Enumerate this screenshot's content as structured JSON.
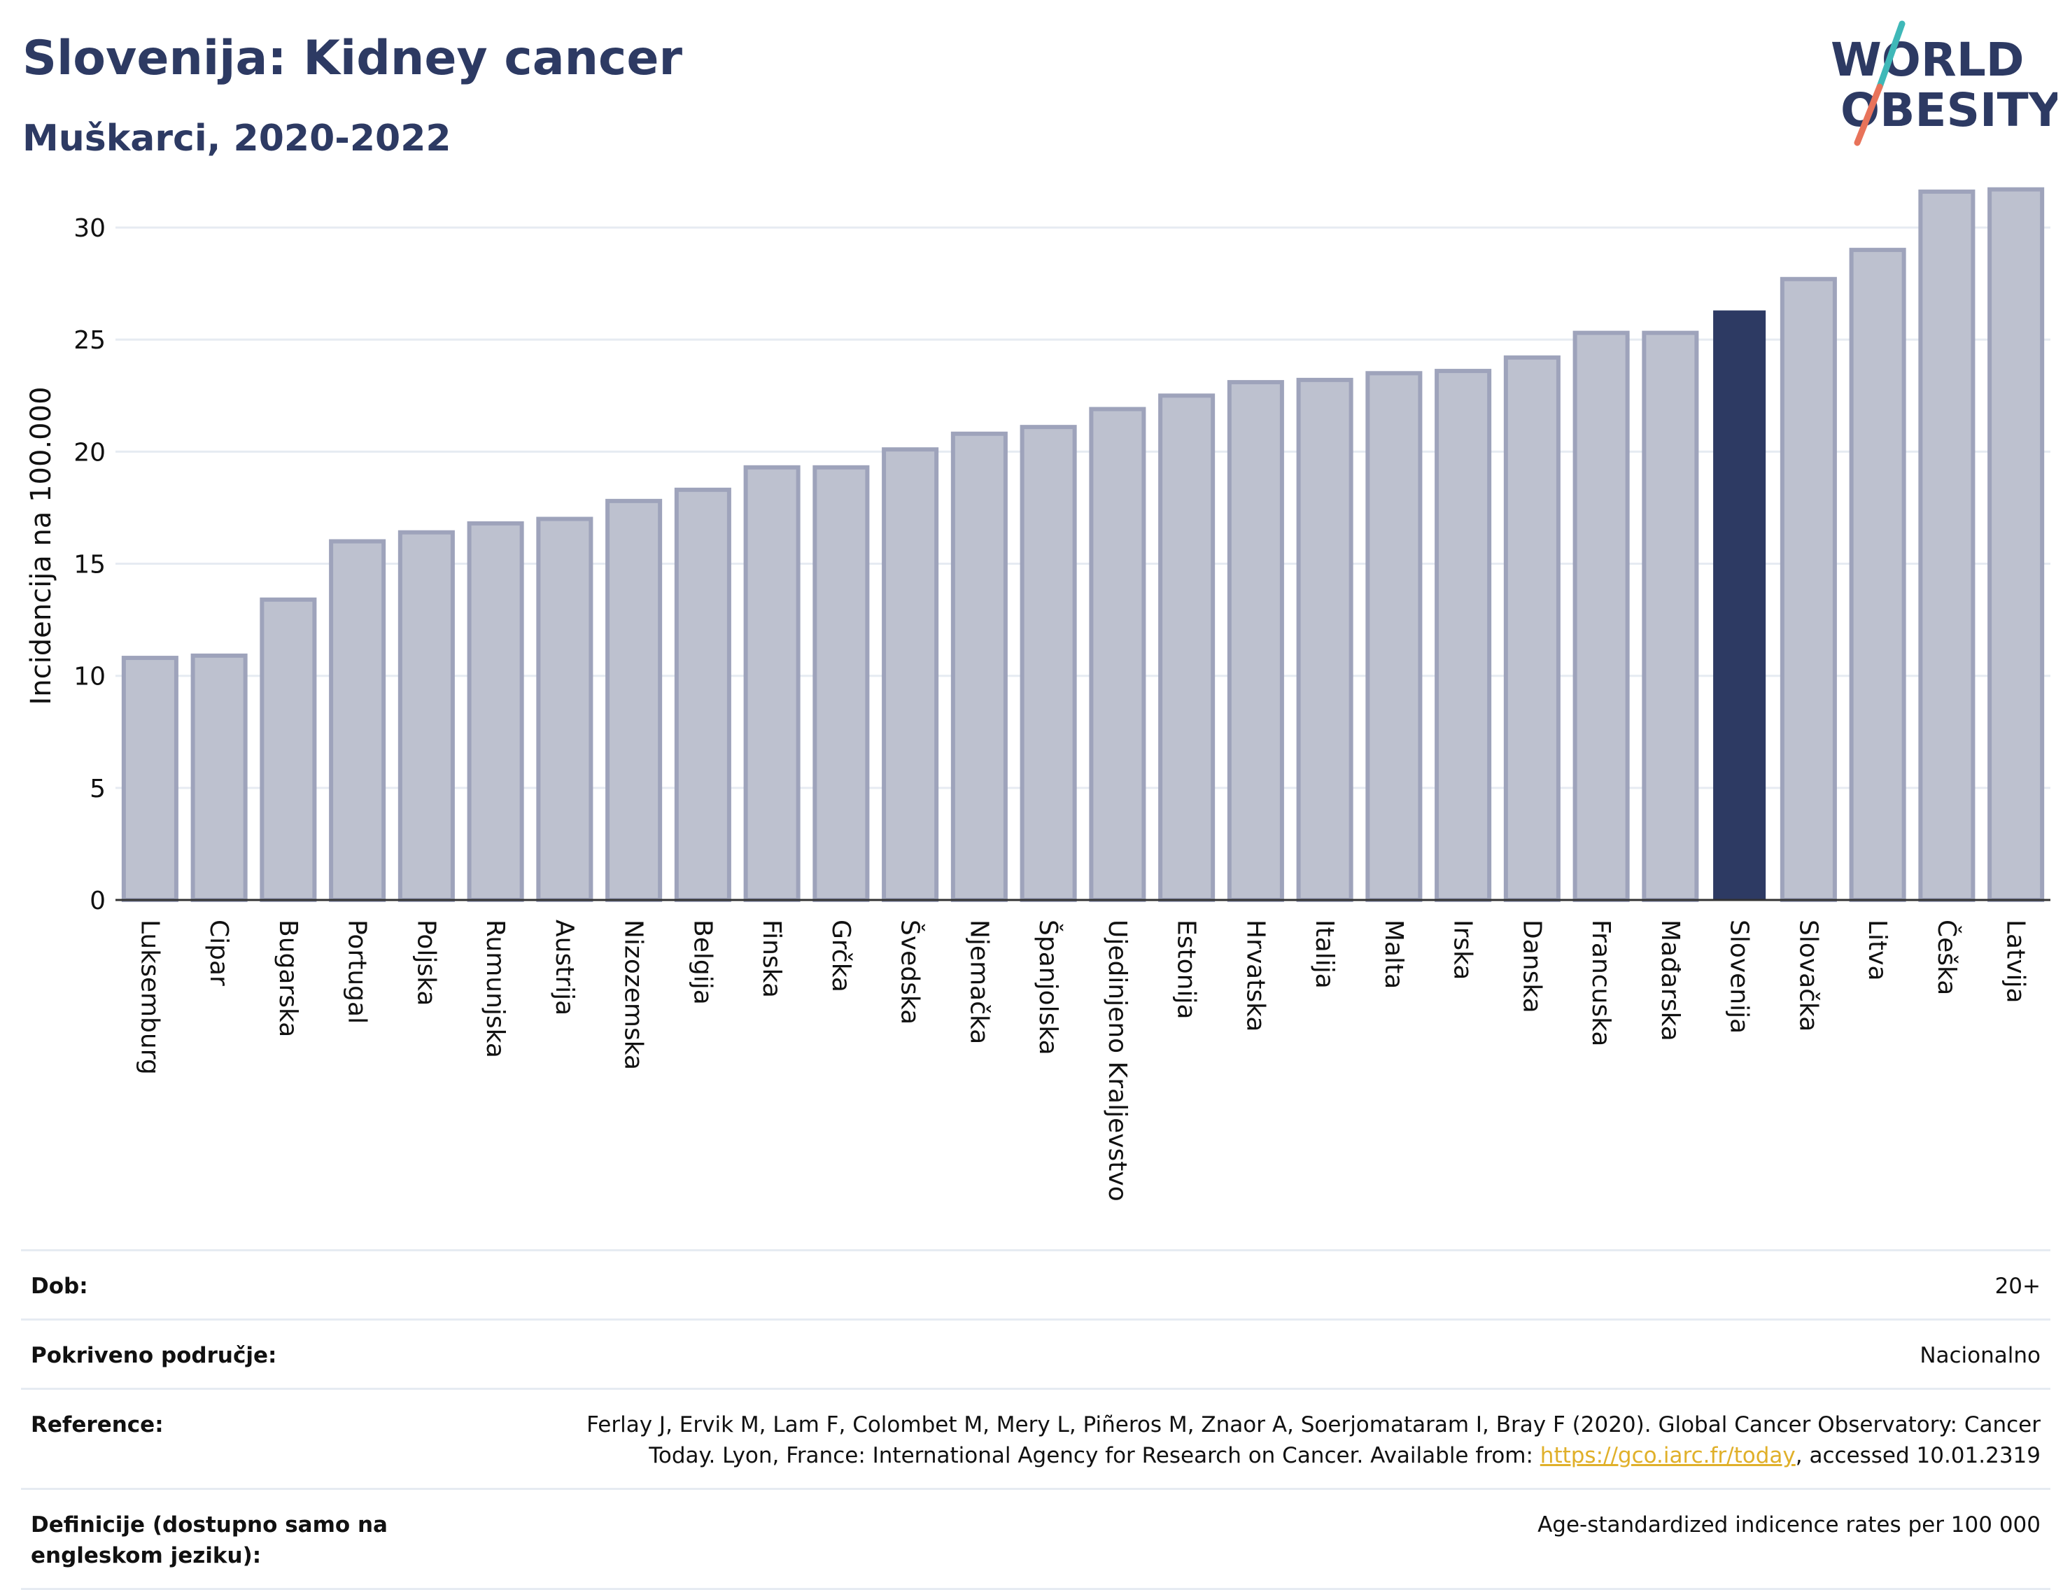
{
  "header": {
    "title": "Slovenija: Kidney cancer",
    "subtitle": "Muškarci, 2020-2022"
  },
  "logo": {
    "line1": "WORLD",
    "line2": "OBESITY",
    "colors": {
      "text": "#2d3a63",
      "slash_teal": "#3fb8b8",
      "slash_red": "#e8735a"
    }
  },
  "chart_data": {
    "type": "bar",
    "title": "",
    "xlabel": "",
    "ylabel": "Incidencija na 100.000",
    "ylim": [
      0,
      32.5
    ],
    "yticks": [
      0,
      5,
      10,
      15,
      20,
      25,
      30
    ],
    "grid": true,
    "highlight": "Slovenija",
    "colors": {
      "bar": "#bdc1cf",
      "bar_edge": "#9ea3bb",
      "highlight": "#2d3a63"
    },
    "categories": [
      "Luksemburg",
      "Cipar",
      "Bugarska",
      "Portugal",
      "Poljska",
      "Rumunjska",
      "Austrija",
      "Nizozemska",
      "Belgija",
      "Finska",
      "Grčka",
      "Švedska",
      "Njemačka",
      "Španjolska",
      "Ujedinjeno Kraljevstvo",
      "Estonija",
      "Hrvatska",
      "Italija",
      "Malta",
      "Irska",
      "Danska",
      "Francuska",
      "Mađarska",
      "Slovenija",
      "Slovačka",
      "Litva",
      "Češka",
      "Latvija"
    ],
    "values": [
      10.8,
      10.9,
      13.4,
      16.0,
      16.4,
      16.8,
      17.0,
      17.8,
      18.3,
      19.3,
      19.3,
      20.1,
      20.8,
      21.1,
      21.9,
      22.5,
      23.1,
      23.2,
      23.5,
      23.6,
      24.2,
      25.3,
      25.3,
      26.3,
      27.7,
      29.0,
      31.6,
      31.7
    ]
  },
  "info": {
    "rows": [
      {
        "key": "Dob:",
        "value": "20+"
      },
      {
        "key": "Pokriveno područje:",
        "value": "Nacionalno"
      },
      {
        "key": "Reference:",
        "value_before": "Ferlay J, Ervik M, Lam F, Colombet M, Mery L, Piñeros M, Znaor A, Soerjomataram I, Bray F (2020). Global Cancer Observatory: Cancer Today. Lyon, France: International Agency for Research on Cancer. Available from: ",
        "link": "https://gco.iarc.fr/today",
        "value_after": ", accessed 10.01.2319"
      },
      {
        "key": "Definicije (dostupno samo na engleskom jeziku):",
        "value": "Age-standardized indicence rates per 100 000"
      }
    ]
  }
}
